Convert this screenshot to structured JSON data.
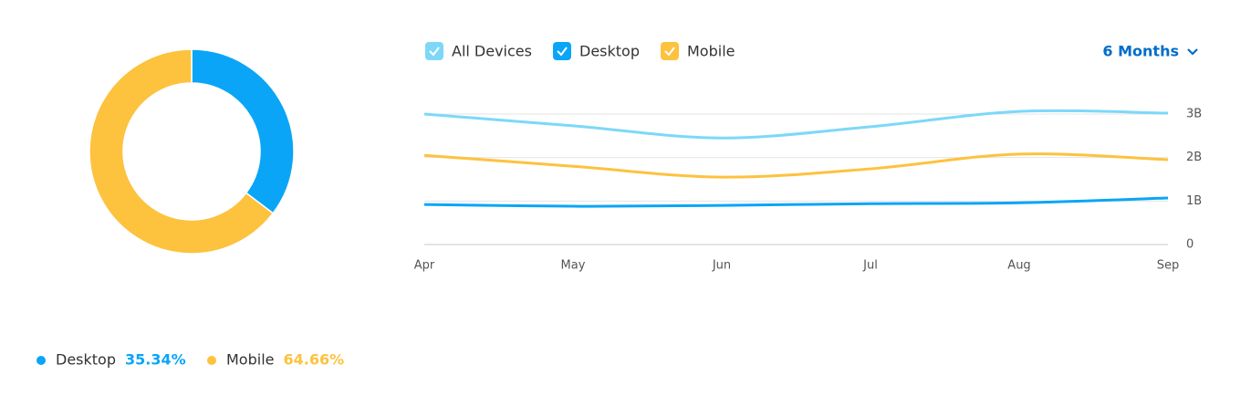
{
  "chart_data": [
    {
      "type": "pie",
      "categories": [
        "Desktop",
        "Mobile"
      ],
      "values": [
        35.34,
        64.66
      ],
      "value_labels": [
        "35.34%",
        "64.66%"
      ],
      "colors": [
        "#0aa5f7",
        "#fdc23e"
      ]
    },
    {
      "type": "line",
      "x": [
        "Apr",
        "May",
        "Jun",
        "Jul",
        "Aug",
        "Sep"
      ],
      "series": [
        {
          "name": "All Devices",
          "color": "#7dd8f8",
          "values": [
            3000000000,
            2730000000,
            2450000000,
            2710000000,
            3060000000,
            3020000000
          ]
        },
        {
          "name": "Desktop",
          "color": "#0aa5f7",
          "values": [
            920000000,
            880000000,
            900000000,
            940000000,
            960000000,
            1070000000
          ]
        },
        {
          "name": "Mobile",
          "color": "#fdc23e",
          "values": [
            2050000000,
            1800000000,
            1550000000,
            1740000000,
            2080000000,
            1950000000
          ]
        }
      ],
      "ylim": [
        0,
        3000000000
      ],
      "yticks": [
        0,
        {
          "value": 1000000000,
          "label": "1B"
        },
        {
          "value": 2000000000,
          "label": "2B"
        },
        {
          "value": 3000000000,
          "label": "3B"
        }
      ],
      "grid": true
    }
  ],
  "controls": {
    "period": "6 Months"
  }
}
